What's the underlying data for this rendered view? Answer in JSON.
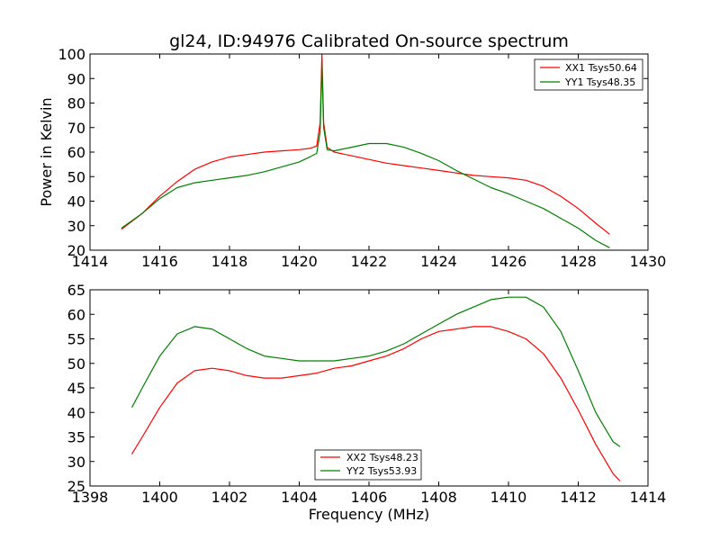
{
  "chart_data": [
    {
      "type": "line",
      "title": "gl24, ID:94976 Calibrated On-source spectrum",
      "xlabel": "",
      "ylabel": "Power in Kelvin",
      "xlim": [
        1414,
        1430
      ],
      "ylim": [
        20,
        100
      ],
      "xticks": [
        1414,
        1416,
        1418,
        1420,
        1422,
        1424,
        1426,
        1428,
        1430
      ],
      "yticks": [
        20,
        30,
        40,
        50,
        60,
        70,
        80,
        90,
        100
      ],
      "grid": false,
      "legend_position": "top-right",
      "series": [
        {
          "name": "XX1 Tsys50.64",
          "color": "#ff0000",
          "x": [
            1414.9,
            1415.5,
            1416.0,
            1416.5,
            1417.0,
            1417.5,
            1418.0,
            1418.5,
            1419.0,
            1419.5,
            1420.0,
            1420.3,
            1420.5,
            1420.6,
            1420.65,
            1420.7,
            1420.8,
            1421.0,
            1421.5,
            1422.0,
            1422.5,
            1423.0,
            1423.5,
            1424.0,
            1424.5,
            1425.0,
            1425.5,
            1426.0,
            1426.5,
            1427.0,
            1427.5,
            1428.0,
            1428.5,
            1428.9
          ],
          "y": [
            28.5,
            35,
            42,
            48,
            53,
            56,
            58,
            59,
            60,
            60.5,
            61,
            61.5,
            62.5,
            72,
            100,
            72,
            62,
            60,
            58.5,
            57,
            55.5,
            54.5,
            53.5,
            52.5,
            51.5,
            50.5,
            50,
            49.5,
            48.5,
            46,
            42,
            37,
            31,
            26.5
          ]
        },
        {
          "name": "YY1 Tsys48.35",
          "color": "#008000",
          "x": [
            1414.9,
            1415.5,
            1416.0,
            1416.5,
            1417.0,
            1417.5,
            1418.0,
            1418.5,
            1419.0,
            1419.5,
            1420.0,
            1420.3,
            1420.5,
            1420.6,
            1420.65,
            1420.7,
            1420.8,
            1421.0,
            1421.5,
            1422.0,
            1422.5,
            1423.0,
            1423.5,
            1424.0,
            1424.5,
            1425.0,
            1425.5,
            1426.0,
            1426.5,
            1427.0,
            1427.5,
            1428.0,
            1428.5,
            1428.9
          ],
          "y": [
            29,
            35,
            41,
            45.5,
            47.5,
            48.5,
            49.5,
            50.5,
            52,
            54,
            56,
            58,
            59.5,
            68,
            96,
            70,
            61,
            60.5,
            62,
            63.5,
            63.5,
            62,
            59.5,
            56.5,
            52.5,
            49,
            45.5,
            43,
            40,
            37,
            33,
            29,
            24,
            21
          ]
        }
      ]
    },
    {
      "type": "line",
      "title": "",
      "xlabel": "Frequency (MHz)",
      "ylabel": "",
      "xlim": [
        1398,
        1414
      ],
      "ylim": [
        25,
        65
      ],
      "xticks": [
        1398,
        1400,
        1402,
        1404,
        1406,
        1408,
        1410,
        1412,
        1414
      ],
      "yticks": [
        25,
        30,
        35,
        40,
        45,
        50,
        55,
        60,
        65
      ],
      "grid": false,
      "legend_position": "bottom-center",
      "series": [
        {
          "name": "XX2 Tsys48.23",
          "color": "#ff0000",
          "x": [
            1399.2,
            1399.5,
            1400.0,
            1400.5,
            1401.0,
            1401.5,
            1402.0,
            1402.5,
            1403.0,
            1403.5,
            1404.0,
            1404.5,
            1405.0,
            1405.5,
            1406.0,
            1406.5,
            1407.0,
            1407.5,
            1408.0,
            1408.5,
            1409.0,
            1409.5,
            1410.0,
            1410.5,
            1411.0,
            1411.5,
            1412.0,
            1412.5,
            1413.0,
            1413.2
          ],
          "y": [
            31.5,
            35,
            41,
            46,
            48.5,
            49,
            48.5,
            47.5,
            47,
            47,
            47.5,
            48,
            49,
            49.5,
            50.5,
            51.5,
            53,
            55,
            56.5,
            57,
            57.5,
            57.5,
            56.5,
            55,
            52,
            47,
            40.5,
            33.5,
            27.5,
            26
          ]
        },
        {
          "name": "YY2 Tsys53.93",
          "color": "#008000",
          "x": [
            1399.2,
            1399.5,
            1400.0,
            1400.5,
            1401.0,
            1401.5,
            1402.0,
            1402.5,
            1403.0,
            1403.5,
            1404.0,
            1404.5,
            1405.0,
            1405.5,
            1406.0,
            1406.5,
            1407.0,
            1407.5,
            1408.0,
            1408.5,
            1409.0,
            1409.5,
            1410.0,
            1410.5,
            1411.0,
            1411.5,
            1412.0,
            1412.5,
            1413.0,
            1413.2
          ],
          "y": [
            41,
            45,
            51.5,
            56,
            57.5,
            57,
            55,
            53,
            51.5,
            51,
            50.5,
            50.5,
            50.5,
            51,
            51.5,
            52.5,
            54,
            56,
            58,
            60,
            61.5,
            63,
            63.5,
            63.5,
            61.5,
            56.5,
            48.5,
            40,
            34,
            33
          ]
        }
      ]
    }
  ]
}
